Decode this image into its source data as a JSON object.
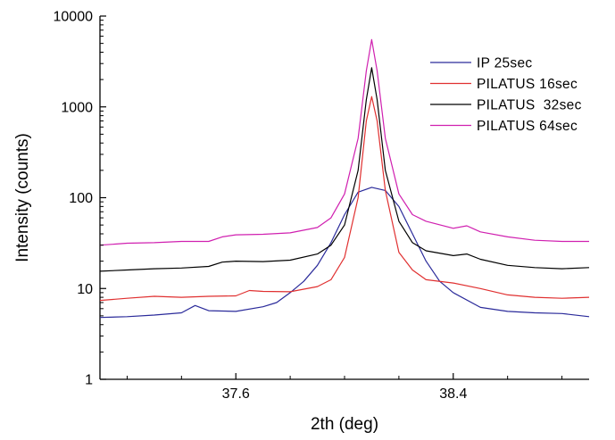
{
  "chart_data": {
    "type": "line",
    "title": "",
    "xlabel": "2th (deg)",
    "ylabel": "Intensity (counts)",
    "xlim": [
      37.1,
      38.9
    ],
    "ylim": [
      1,
      10000
    ],
    "y_scale": "log",
    "grid": false,
    "legend_position": "top-right",
    "x_ticks": [
      {
        "value": 37.6,
        "label": "37.6"
      },
      {
        "value": 38.4,
        "label": "38.4"
      }
    ],
    "y_ticks": [
      {
        "value": 1,
        "label": "1"
      },
      {
        "value": 10,
        "label": "10"
      },
      {
        "value": 100,
        "label": "100"
      },
      {
        "value": 1000,
        "label": "1000"
      },
      {
        "value": 10000,
        "label": "10000"
      }
    ],
    "series": [
      {
        "name": "IP 25sec",
        "color": "#2a2a9a",
        "points": [
          [
            37.1,
            4.8
          ],
          [
            37.2,
            4.9
          ],
          [
            37.3,
            5.1
          ],
          [
            37.4,
            5.4
          ],
          [
            37.45,
            6.5
          ],
          [
            37.5,
            5.7
          ],
          [
            37.6,
            5.6
          ],
          [
            37.7,
            6.3
          ],
          [
            37.75,
            7.0
          ],
          [
            37.8,
            9.0
          ],
          [
            37.85,
            12
          ],
          [
            37.9,
            18
          ],
          [
            37.95,
            32
          ],
          [
            38.0,
            65
          ],
          [
            38.05,
            115
          ],
          [
            38.1,
            130
          ],
          [
            38.15,
            120
          ],
          [
            38.2,
            80
          ],
          [
            38.25,
            40
          ],
          [
            38.3,
            20
          ],
          [
            38.35,
            12
          ],
          [
            38.4,
            9
          ],
          [
            38.5,
            6.2
          ],
          [
            38.6,
            5.6
          ],
          [
            38.7,
            5.4
          ],
          [
            38.8,
            5.3
          ],
          [
            38.9,
            4.9
          ]
        ]
      },
      {
        "name": "PILATUS 16sec",
        "color": "#e03030",
        "points": [
          [
            37.1,
            7.4
          ],
          [
            37.2,
            7.8
          ],
          [
            37.3,
            8.2
          ],
          [
            37.4,
            8.0
          ],
          [
            37.5,
            8.2
          ],
          [
            37.6,
            8.3
          ],
          [
            37.65,
            9.5
          ],
          [
            37.7,
            9.3
          ],
          [
            37.8,
            9.2
          ],
          [
            37.9,
            10.5
          ],
          [
            37.95,
            12.5
          ],
          [
            38.0,
            22
          ],
          [
            38.05,
            100
          ],
          [
            38.08,
            700
          ],
          [
            38.1,
            1300
          ],
          [
            38.12,
            700
          ],
          [
            38.15,
            120
          ],
          [
            38.2,
            25
          ],
          [
            38.25,
            16
          ],
          [
            38.3,
            12.5
          ],
          [
            38.4,
            11.5
          ],
          [
            38.5,
            10
          ],
          [
            38.6,
            8.5
          ],
          [
            38.7,
            8.0
          ],
          [
            38.8,
            7.8
          ],
          [
            38.9,
            8.0
          ]
        ]
      },
      {
        "name": "PILATUS  32sec",
        "color": "#000000",
        "points": [
          [
            37.1,
            15.5
          ],
          [
            37.2,
            16.0
          ],
          [
            37.3,
            16.5
          ],
          [
            37.4,
            16.8
          ],
          [
            37.5,
            17.5
          ],
          [
            37.55,
            19.5
          ],
          [
            37.6,
            20
          ],
          [
            37.7,
            19.8
          ],
          [
            37.8,
            20.5
          ],
          [
            37.9,
            24
          ],
          [
            37.95,
            30
          ],
          [
            38.0,
            50
          ],
          [
            38.05,
            200
          ],
          [
            38.08,
            1200
          ],
          [
            38.1,
            2700
          ],
          [
            38.12,
            1200
          ],
          [
            38.15,
            200
          ],
          [
            38.2,
            55
          ],
          [
            38.25,
            32
          ],
          [
            38.3,
            26
          ],
          [
            38.4,
            23
          ],
          [
            38.45,
            24
          ],
          [
            38.5,
            21
          ],
          [
            38.6,
            18
          ],
          [
            38.7,
            17
          ],
          [
            38.8,
            16.5
          ],
          [
            38.9,
            17
          ]
        ]
      },
      {
        "name": "PILATUS 64sec",
        "color": "#d020b0",
        "points": [
          [
            37.1,
            30
          ],
          [
            37.2,
            31.5
          ],
          [
            37.3,
            32
          ],
          [
            37.4,
            33
          ],
          [
            37.5,
            33
          ],
          [
            37.55,
            37
          ],
          [
            37.6,
            39
          ],
          [
            37.7,
            39.5
          ],
          [
            37.8,
            41
          ],
          [
            37.9,
            47
          ],
          [
            37.95,
            60
          ],
          [
            38.0,
            110
          ],
          [
            38.05,
            450
          ],
          [
            38.08,
            2500
          ],
          [
            38.1,
            5500
          ],
          [
            38.12,
            2500
          ],
          [
            38.15,
            450
          ],
          [
            38.2,
            110
          ],
          [
            38.25,
            65
          ],
          [
            38.3,
            55
          ],
          [
            38.4,
            46
          ],
          [
            38.45,
            49
          ],
          [
            38.5,
            42
          ],
          [
            38.6,
            37
          ],
          [
            38.7,
            34
          ],
          [
            38.8,
            33
          ],
          [
            38.9,
            33
          ]
        ]
      }
    ]
  }
}
